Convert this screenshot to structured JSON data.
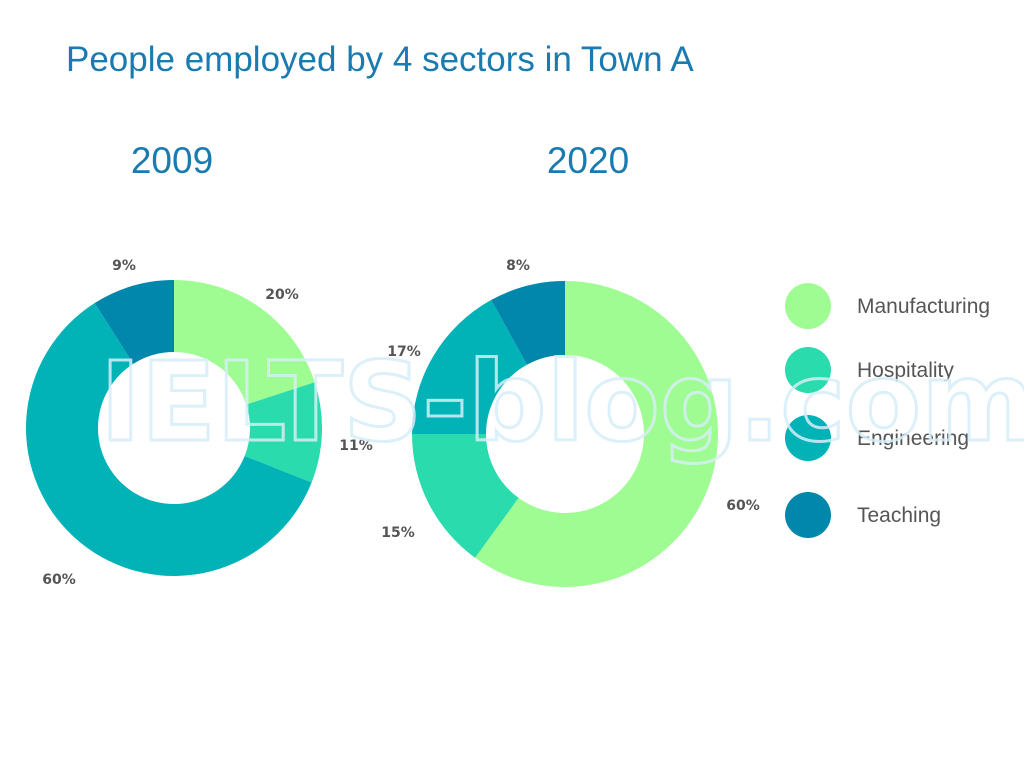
{
  "title": "People employed by 4 sectors in Town A",
  "watermark": "IELTS-blog.com",
  "colors": {
    "Manufacturing": "#9efc92",
    "Hospitality": "#2adbad",
    "Engineering": "#01b3b7",
    "Teaching": "#0187ac",
    "title": "#1a7bb0",
    "label": "#555555"
  },
  "legend": {
    "placement": "right",
    "items": [
      "Manufacturing",
      "Hospitality",
      "Engineering",
      "Teaching"
    ]
  },
  "chart_data": [
    {
      "type": "pie",
      "subtype": "donut",
      "title": "2009",
      "slices": [
        {
          "name": "Manufacturing",
          "value": 20,
          "label": "20%"
        },
        {
          "name": "Hospitality",
          "value": 11,
          "label": "11%"
        },
        {
          "name": "Engineering",
          "value": 60,
          "label": "60%"
        },
        {
          "name": "Teaching",
          "value": 9,
          "label": "9%"
        }
      ]
    },
    {
      "type": "pie",
      "subtype": "donut",
      "title": "2020",
      "slices": [
        {
          "name": "Manufacturing",
          "value": 60,
          "label": "60%"
        },
        {
          "name": "Hospitality",
          "value": 15,
          "label": "15%"
        },
        {
          "name": "Engineering",
          "value": 17,
          "label": "17%"
        },
        {
          "name": "Teaching",
          "value": 8,
          "label": "8%"
        }
      ]
    }
  ]
}
